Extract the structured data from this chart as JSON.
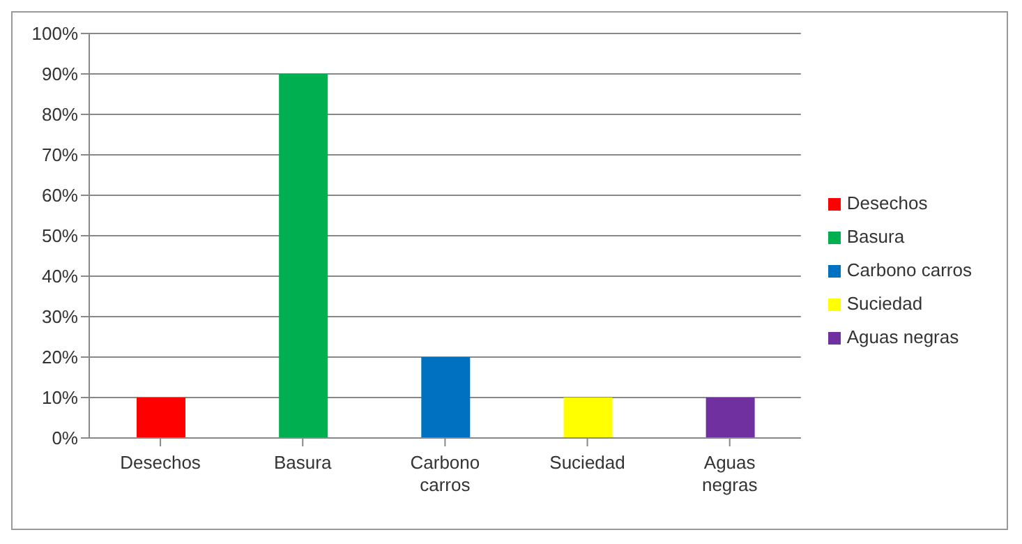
{
  "chart_data": {
    "type": "bar",
    "stacked": true,
    "categories": [
      "Desechos",
      "Basura",
      "Carbono carros",
      "Suciedad",
      "Aguas negras"
    ],
    "series": [
      {
        "name": "Desechos",
        "color": "#ff0000",
        "values": [
          10,
          null,
          null,
          null,
          null
        ]
      },
      {
        "name": "Basura",
        "color": "#00b050",
        "values": [
          null,
          90,
          null,
          null,
          null
        ]
      },
      {
        "name": "Carbono carros",
        "color": "#0070c0",
        "values": [
          null,
          null,
          20,
          null,
          null
        ]
      },
      {
        "name": "Suciedad",
        "color": "#ffff00",
        "values": [
          null,
          null,
          null,
          10,
          null
        ]
      },
      {
        "name": "Aguas negras",
        "color": "#7030a0",
        "values": [
          null,
          null,
          null,
          null,
          10
        ]
      }
    ],
    "ylim": [
      0,
      100
    ],
    "yticks": [
      {
        "value": 0,
        "label": "0%"
      },
      {
        "value": 10,
        "label": "10%"
      },
      {
        "value": 20,
        "label": "20%"
      },
      {
        "value": 30,
        "label": "30%"
      },
      {
        "value": 40,
        "label": "40%"
      },
      {
        "value": 50,
        "label": "50%"
      },
      {
        "value": 60,
        "label": "60%"
      },
      {
        "value": 70,
        "label": "70%"
      },
      {
        "value": 80,
        "label": "80%"
      },
      {
        "value": 90,
        "label": "90%"
      },
      {
        "value": 100,
        "label": "100%"
      }
    ],
    "grid": "y",
    "legend": "right"
  }
}
